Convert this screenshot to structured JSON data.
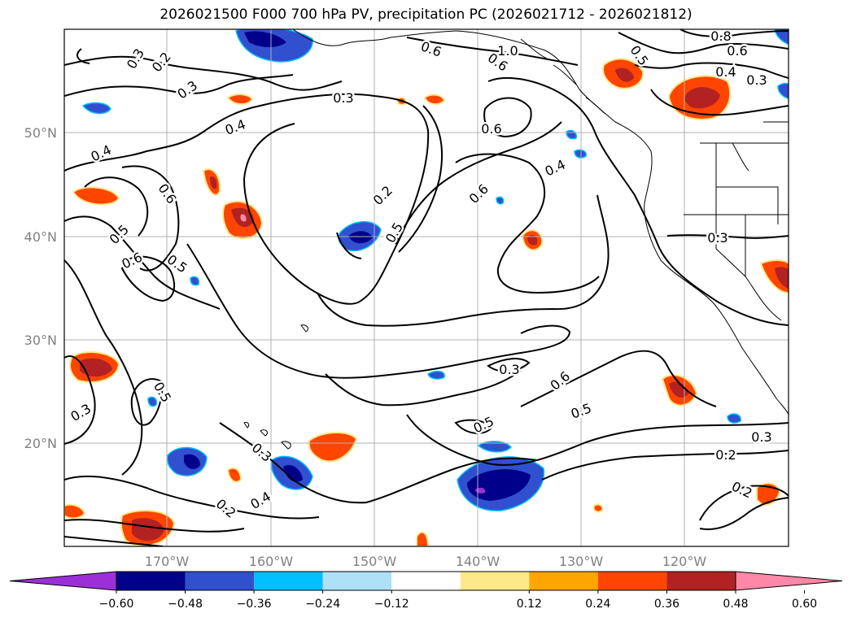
{
  "title": "2026021500 F000 700 hPa PV, precipitation PC (2026021712 - 2026021812)",
  "map": {
    "lat_labels": [
      "50°N",
      "40°N",
      "30°N",
      "20°N"
    ],
    "lon_labels": [
      "170°W",
      "160°W",
      "150°W",
      "140°W",
      "130°W",
      "120°W"
    ],
    "contour_labels": [
      "0.3",
      "0.2",
      "0.3",
      "0.3",
      "0.4",
      "0.4",
      "0.6",
      "0.5",
      "0.6",
      "0.5",
      "0.2",
      "0.5",
      "0.6",
      "0.6",
      "0.4",
      "0.6",
      "1.0",
      "0.6",
      "0.5",
      "0.6",
      "0.4",
      "0.3",
      "0.8",
      "0.3",
      "0.3",
      "0.6",
      "0.5",
      "0.5",
      "0.5",
      "0.3",
      "0.3",
      "0.2",
      "0.3",
      "0.4",
      "0.2",
      "0.2"
    ]
  },
  "colorbar": {
    "ticks": [
      "−0.60",
      "−0.48",
      "−0.36",
      "−0.24",
      "−0.12",
      "0.12",
      "0.24",
      "0.36",
      "0.48",
      "0.60"
    ],
    "colors": [
      "#9b30d9",
      "#00008b",
      "#3050d0",
      "#00bfff",
      "#aee0f8",
      "#ffffff",
      "#fde98a",
      "#ffa500",
      "#ff4500",
      "#b22222",
      "#ff88a8"
    ]
  },
  "colors": {
    "grid": "#b0b0b0",
    "contour": "#000000",
    "axis_label": "#808080"
  }
}
